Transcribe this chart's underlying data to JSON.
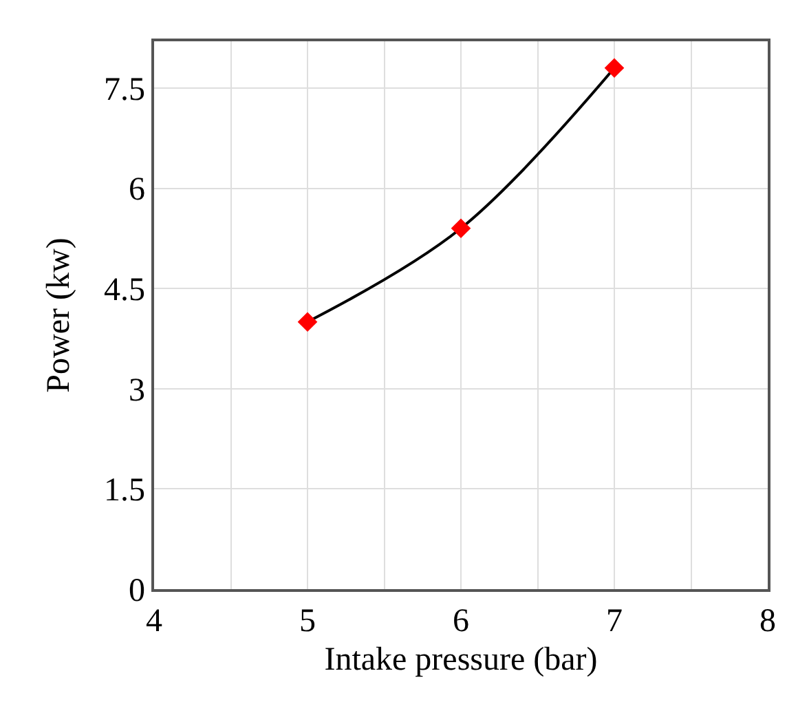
{
  "chart_data": {
    "type": "line",
    "xlabel": "Intake pressure (bar)",
    "ylabel": "Power (kw)",
    "x": [
      5,
      6,
      7
    ],
    "series": [
      {
        "color": "#000000",
        "values": [
          4.0,
          5.4,
          7.8
        ],
        "marker": "none",
        "line_style": "solid"
      },
      {
        "type": "scatter",
        "color": "#ff0000",
        "values": [
          4.0,
          5.4,
          7.8
        ],
        "marker": "diamond"
      }
    ],
    "xlim": [
      4,
      8
    ],
    "xticks": [
      4,
      5,
      6,
      7,
      8
    ],
    "ylim": [
      0,
      8.2
    ],
    "yticks": [
      0,
      1.5,
      3,
      4.5,
      6,
      7.5
    ],
    "grid": true
  }
}
